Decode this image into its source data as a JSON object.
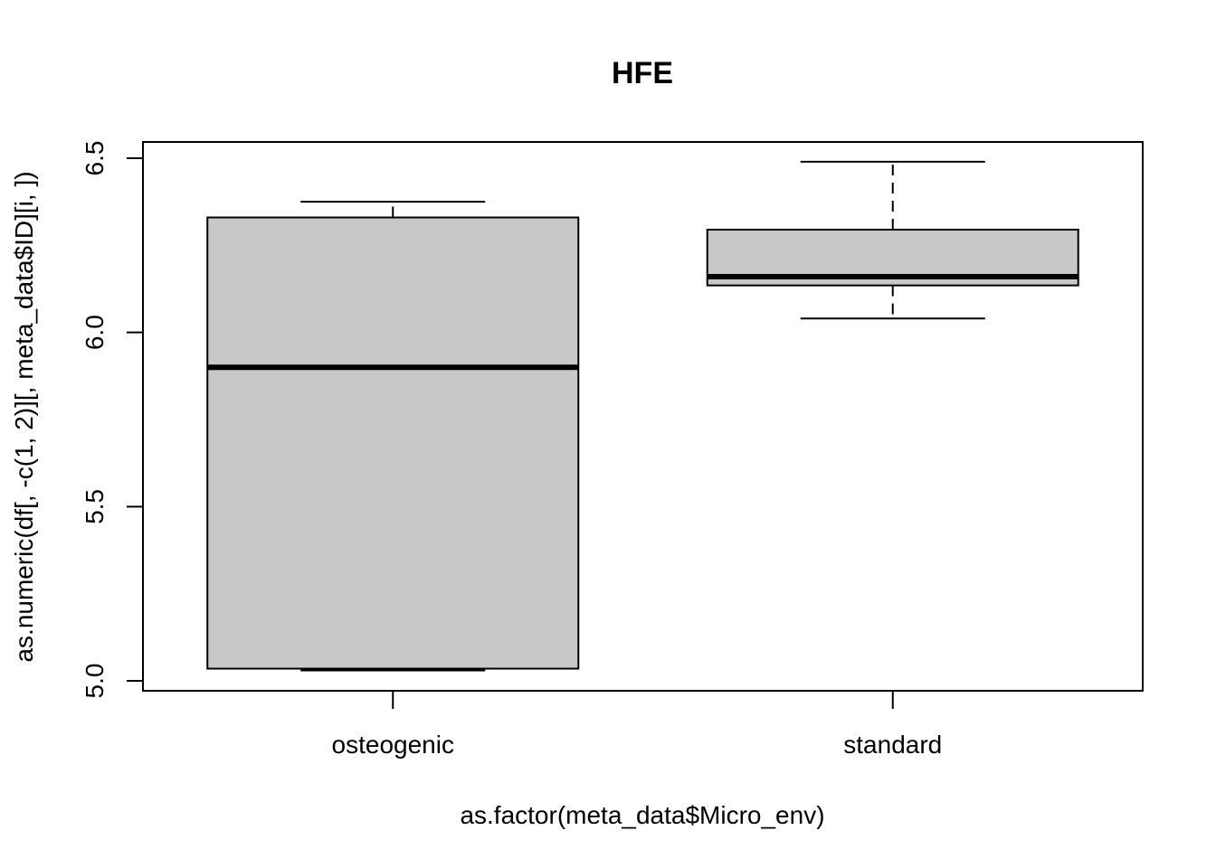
{
  "chart_data": {
    "type": "boxplot",
    "title": "HFE",
    "xlabel": "as.factor(meta_data$Micro_env)",
    "ylabel": "as.numeric(df[, -c(1, 2)][, meta_data$ID][i, ])",
    "categories": [
      "osteogenic",
      "standard"
    ],
    "ylim": [
      4.97,
      6.54
    ],
    "yticks": [
      5.0,
      5.5,
      6.0,
      6.5
    ],
    "ytick_labels": [
      "5.0",
      "5.5",
      "6.0",
      "6.5"
    ],
    "boxes": [
      {
        "category": "osteogenic",
        "whisker_low": 5.03,
        "q1": 5.035,
        "median": 5.9,
        "q3": 6.33,
        "whisker_high": 6.375
      },
      {
        "category": "standard",
        "whisker_low": 6.04,
        "q1": 6.135,
        "median": 6.16,
        "q3": 6.295,
        "whisker_high": 6.49
      }
    ],
    "box_fill": "#c8c8c8",
    "line_color": "#000000",
    "grid": false,
    "legend": "none"
  }
}
